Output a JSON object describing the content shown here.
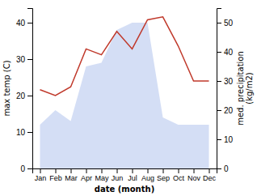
{
  "chart_data": {
    "type": "line",
    "categories": [
      "Jan",
      "Feb",
      "Mar",
      "Apr",
      "May",
      "Jun",
      "Jul",
      "Aug",
      "Sep",
      "Oct",
      "Nov",
      "Dec"
    ],
    "series": [
      {
        "type": "area",
        "color": "#b8c8ee",
        "values": [
          12,
          16,
          13,
          28,
          29,
          38,
          40,
          40,
          14,
          12,
          12,
          12
        ]
      },
      {
        "type": "line",
        "color": "#c0392b",
        "axis": "y2",
        "values": [
          27,
          25,
          28,
          41,
          39,
          47,
          41,
          51,
          52,
          42,
          30,
          30
        ]
      }
    ],
    "ylim": [
      0,
      44
    ],
    "yticks": [
      0,
      10,
      20,
      30,
      40
    ],
    "y2lim": [
      0,
      55
    ],
    "y2ticks": [
      0,
      10,
      20,
      30,
      40,
      50
    ],
    "xlabel": "date (month)",
    "ylabel": "max temp (C)",
    "y2label": "med. precipitation\n(kg/m2)"
  }
}
